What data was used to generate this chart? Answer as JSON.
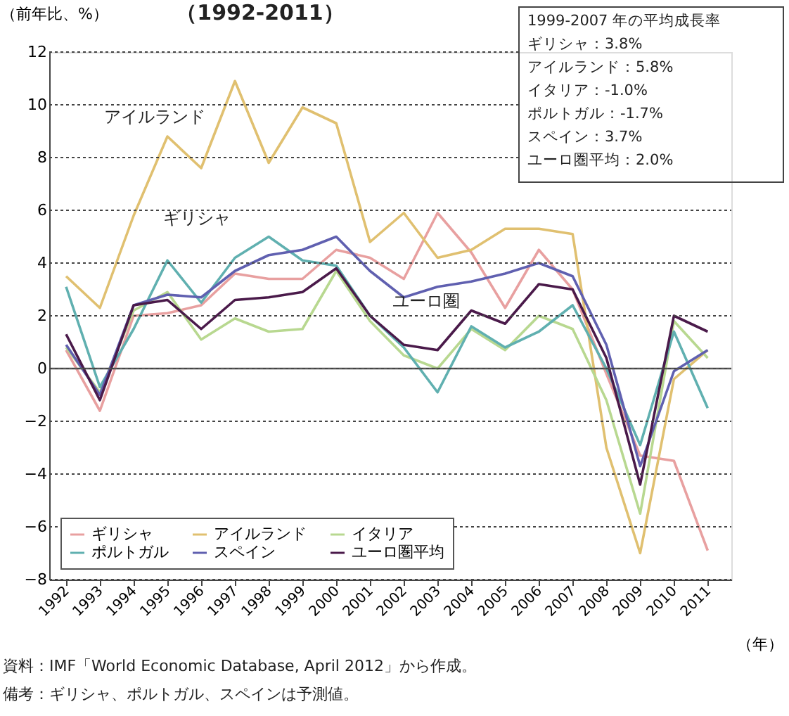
{
  "chart_data": {
    "type": "line",
    "title": "（1992-2011）",
    "ylabel": "（前年比、%）",
    "xlabel": "（年）",
    "x": [
      1992,
      1993,
      1994,
      1995,
      1996,
      1997,
      1998,
      1999,
      2000,
      2001,
      2002,
      2003,
      2004,
      2005,
      2006,
      2007,
      2008,
      2009,
      2010,
      2011
    ],
    "series": [
      {
        "name": "ギリシャ",
        "color": "#e8a0a0",
        "values": [
          0.7,
          -1.6,
          2.0,
          2.1,
          2.4,
          3.6,
          3.4,
          3.4,
          4.5,
          4.2,
          3.4,
          5.9,
          4.4,
          2.3,
          4.5,
          3.0,
          -0.2,
          -3.3,
          -3.5,
          -6.9
        ]
      },
      {
        "name": "アイルランド",
        "color": "#e0c070",
        "values": [
          3.5,
          2.3,
          5.8,
          8.8,
          7.6,
          10.9,
          7.8,
          9.9,
          9.3,
          4.8,
          5.9,
          4.2,
          4.5,
          5.3,
          5.3,
          5.1,
          -3.0,
          -7.0,
          -0.4,
          0.7
        ]
      },
      {
        "name": "イタリア",
        "color": "#b8d890",
        "values": [
          0.8,
          -0.9,
          2.2,
          2.9,
          1.1,
          1.9,
          1.4,
          1.5,
          3.7,
          1.8,
          0.5,
          0.0,
          1.5,
          0.7,
          2.0,
          1.5,
          -1.2,
          -5.5,
          1.8,
          0.4
        ]
      },
      {
        "name": "ポルトガル",
        "color": "#60b0b0",
        "values": [
          3.1,
          -0.7,
          1.5,
          4.1,
          2.5,
          4.2,
          5.0,
          4.1,
          3.9,
          2.0,
          0.8,
          -0.9,
          1.6,
          0.8,
          1.4,
          2.4,
          0.0,
          -2.9,
          1.4,
          -1.5
        ]
      },
      {
        "name": "スペイン",
        "color": "#6060b0",
        "values": [
          0.9,
          -1.0,
          2.4,
          2.8,
          2.7,
          3.7,
          4.3,
          4.5,
          5.0,
          3.7,
          2.7,
          3.1,
          3.3,
          3.6,
          4.0,
          3.5,
          0.9,
          -3.7,
          -0.1,
          0.7
        ]
      },
      {
        "name": "ユーロ圏平均",
        "color": "#4a1a4a",
        "values": [
          1.3,
          -1.2,
          2.4,
          2.6,
          1.5,
          2.6,
          2.7,
          2.9,
          3.8,
          2.0,
          0.9,
          0.7,
          2.2,
          1.7,
          3.2,
          3.0,
          0.4,
          -4.4,
          2.0,
          1.4
        ]
      }
    ],
    "xlim": [
      1991.5,
      2011.7
    ],
    "xticks": [
      1992,
      1993,
      1994,
      1995,
      1996,
      1997,
      1998,
      1999,
      2000,
      2001,
      2002,
      2003,
      2004,
      2005,
      2006,
      2007,
      2008,
      2009,
      2010,
      2011
    ],
    "ylim": [
      -8,
      12
    ],
    "yticks": [
      -8,
      -6,
      -4,
      -2,
      0,
      2,
      4,
      6,
      8,
      10,
      12
    ],
    "grid": "y",
    "legend": "bottom left",
    "line_style": "solid",
    "marker": "none",
    "annotations": [
      "アイルランド",
      "ギリシャ",
      "ユーロ圏",
      "1999-2007 年の平均成長率",
      "ギリシャ：3.8%",
      "アイルランド：5.8%",
      "イタリア：-1.0%",
      "ポルトガル：-1.7%",
      "スペイン：3.7%",
      "ユーロ圏平均：2.0%",
      "資料：IMF「World Economic Database, April 2012」から作成。",
      "備考：ギリシャ、ポルトガル、スペインは予測値。"
    ]
  }
}
